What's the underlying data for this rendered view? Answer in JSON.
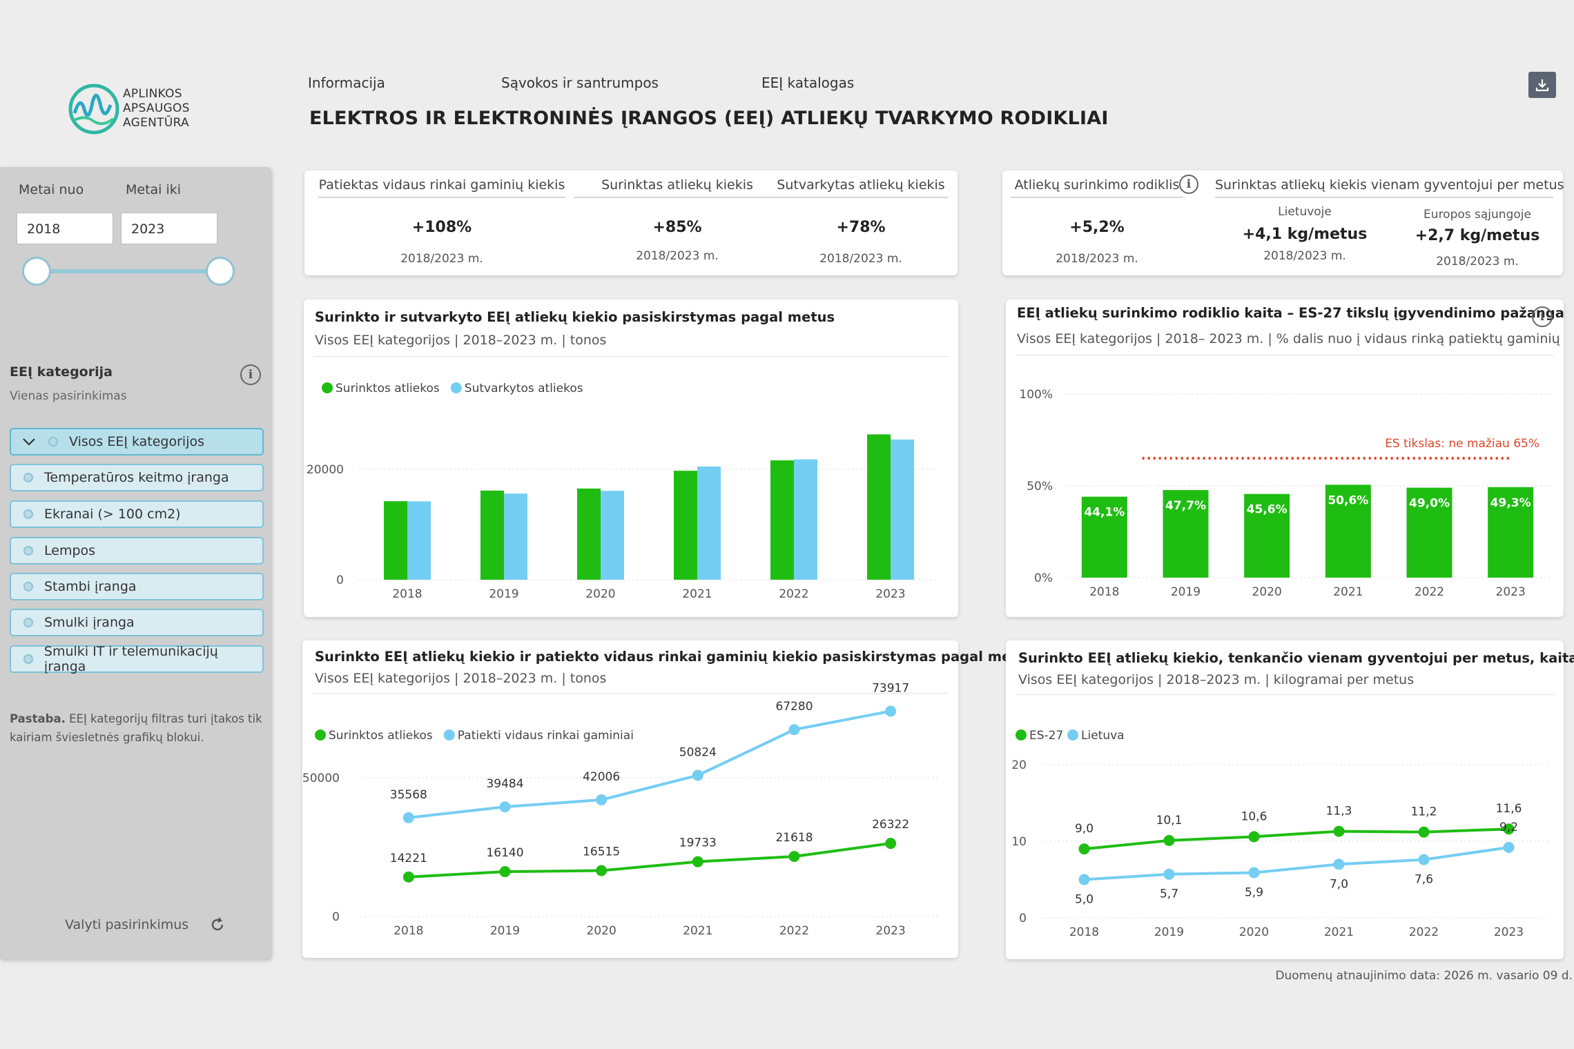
{
  "logo": {
    "line1": "APLINKOS",
    "line2": "APSAUGOS",
    "line3": "AGENTŪRA"
  },
  "nav": {
    "item1": "Informacija",
    "item2": "Sąvokos ir santrumpos",
    "item3": "EEĮ katalogas"
  },
  "title": "ELEKTROS IR ELEKTRONINĖS ĮRANGOS (EEĮ) ATLIEKŲ TVARKYMO RODIKLIAI",
  "filters": {
    "from_label": "Metai nuo",
    "to_label": "Metai iki",
    "from_value": "2018",
    "to_value": "2023",
    "category_title": "EEĮ kategorija",
    "category_sub": "Vienas pasirinkimas",
    "categories": [
      "Visos EEĮ kategorijos",
      "Temperatūros keitmo įranga",
      "Ekranai (> 100 cm2)",
      "Lempos",
      "Stambi įranga",
      "Smulki įranga",
      "Smulki IT ir telemunikacijų įranga"
    ],
    "note_bold": "Pastaba.",
    "note_line1": " EEĮ kategorijų filtras turi įtakos tik",
    "note_line2": "kairiam šviesletnės grafikų blokui.",
    "reset": "Valyti pasirinkimus"
  },
  "kpi_left": [
    {
      "header": "Patiektas vidaus rinkai gaminių kiekis",
      "value": "+108%",
      "sub": "2018/2023 m."
    },
    {
      "header": "Surinktas atliekų kiekis",
      "value": "+85%",
      "sub": "2018/2023 m."
    },
    {
      "header": "Sutvarkytas atliekų kiekis",
      "value": "+78%",
      "sub": "2018/2023 m."
    }
  ],
  "kpi_right": {
    "rate_header": "Atliekų surinkimo rodiklis",
    "rate_value": "+5,2%",
    "rate_sub": "2018/2023 m.",
    "percap_header": "Surinktas atliekų kiekis vienam gyventojui per metus",
    "lt_label": "Lietuvoje",
    "lt_value": "+4,1 kg/metus",
    "lt_sub": "2018/2023 m.",
    "eu_label": "Europos sąjungoje",
    "eu_value": "+2,7 kg/metus",
    "eu_sub": "2018/2023 m."
  },
  "footer": "Duomenų atnaujinimo data: 2026 m. vasario 09 d.",
  "colors": {
    "green": "#1fbd12",
    "blue": "#74cdf2",
    "target": "#e0442a"
  },
  "chart_data": [
    {
      "type": "bar",
      "title": "Surinkto ir sutvarkyto EEĮ atliekų kiekio pasiskirstymas pagal metus",
      "subtitle": "Visos EEĮ kategorijos  |  2018–2023 m.  |  tonos",
      "categories": [
        "2018",
        "2019",
        "2020",
        "2021",
        "2022",
        "2023"
      ],
      "series": [
        {
          "name": "Surinktos atliekos",
          "values": [
            14221,
            16140,
            16515,
            19733,
            21618,
            26322
          ]
        },
        {
          "name": "Sutvarkytos atliekos",
          "values": [
            14200,
            15600,
            16100,
            20500,
            21800,
            25400
          ]
        }
      ],
      "yticks": [
        "0",
        "20000"
      ],
      "ylim": [
        0,
        30000
      ]
    },
    {
      "type": "bar",
      "title": "EEĮ atliekų surinkimo rodiklio kaita – ES-27 tikslų įgyvendinimo pažanga",
      "subtitle": "Visos EEĮ kategorijos  |  2018– 2023 m.  |  % dalis nuo į vidaus rinką patiektų gaminių",
      "categories": [
        "2018",
        "2019",
        "2020",
        "2021",
        "2022",
        "2023"
      ],
      "values": [
        44.1,
        47.7,
        45.6,
        50.6,
        49.0,
        49.3
      ],
      "value_labels": [
        "44,1%",
        "47,7%",
        "45,6%",
        "50,6%",
        "49,0%",
        "49,3%"
      ],
      "target_label": "ES tikslas: ne mažiau 65%",
      "yticks": [
        "0%",
        "50%",
        "100%"
      ],
      "ylim": [
        0,
        100
      ]
    },
    {
      "type": "line",
      "title": "Surinkto EEĮ atliekų kiekio ir patiekto vidaus rinkai gaminių kiekio pasiskirstymas pagal metus",
      "subtitle": "Visos EEĮ kategorijos  |  2018–2023 m.  |  tonos",
      "x": [
        "2018",
        "2019",
        "2020",
        "2021",
        "2022",
        "2023"
      ],
      "series": [
        {
          "name": "Surinktos atliekos",
          "values": [
            14221,
            16140,
            16515,
            19733,
            21618,
            26322
          ],
          "labels": [
            "14221",
            "16140",
            "16515",
            "19733",
            "21618",
            "26322"
          ]
        },
        {
          "name": "Patiekti vidaus rinkai gaminiai",
          "values": [
            35568,
            39484,
            42006,
            50824,
            67280,
            73917
          ],
          "labels": [
            "35568",
            "39484",
            "42006",
            "50824",
            "67280",
            "73917"
          ]
        }
      ],
      "yticks": [
        "0",
        "50000"
      ],
      "ylim": [
        0,
        80000
      ]
    },
    {
      "type": "line",
      "title": "Surinkto EEĮ atliekų kiekio, tenkančio vienam gyventojui per metus, kaita",
      "subtitle": "Visos EEĮ kategorijos  |  2018–2023 m.  |  kilogramai per metus",
      "x": [
        "2018",
        "2019",
        "2020",
        "2021",
        "2022",
        "2023"
      ],
      "series": [
        {
          "name": "ES-27",
          "values": [
            9.0,
            10.1,
            10.6,
            11.3,
            11.2,
            11.6
          ],
          "labels": [
            "9,0",
            "10,1",
            "10,6",
            "11,3",
            "11,2",
            "11,6"
          ]
        },
        {
          "name": "Lietuva",
          "values": [
            5.0,
            5.7,
            5.9,
            7.0,
            7.6,
            9.2
          ],
          "labels": [
            "5,0",
            "5,7",
            "5,9",
            "7,0",
            "7,6",
            "9,2"
          ]
        }
      ],
      "yticks": [
        "0",
        "10",
        "20"
      ],
      "ylim": [
        0,
        20
      ]
    }
  ]
}
